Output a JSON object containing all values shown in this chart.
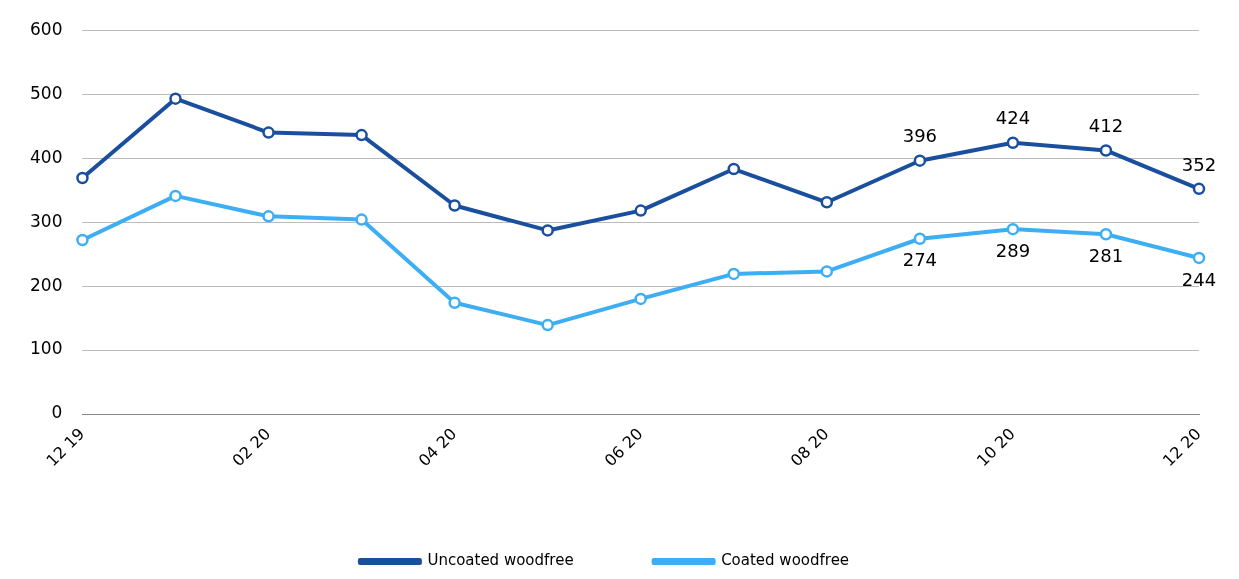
{
  "chart_data": {
    "type": "line",
    "categories": [
      "12 19",
      null,
      "02 20",
      null,
      "04 20",
      null,
      "06 20",
      null,
      "08 20",
      null,
      "10 20",
      null,
      "12 20"
    ],
    "series": [
      {
        "name": "Uncoated woodfree",
        "color": "#1a4f9e",
        "values": [
          369,
          493,
          440,
          436,
          326,
          287,
          318,
          383,
          331,
          396,
          424,
          412,
          352
        ],
        "value_labels": [
          null,
          null,
          null,
          null,
          null,
          null,
          null,
          null,
          null,
          "396",
          "424",
          "412",
          "352"
        ]
      },
      {
        "name": "Coated woodfree",
        "color": "#3eaef4",
        "values": [
          272,
          341,
          309,
          304,
          174,
          139,
          180,
          219,
          223,
          274,
          289,
          281,
          244
        ],
        "value_labels": [
          null,
          null,
          null,
          null,
          null,
          null,
          null,
          null,
          null,
          "274",
          "289",
          "281",
          "244"
        ]
      }
    ],
    "ylim": [
      0,
      600
    ],
    "yticks": [
      0,
      100,
      200,
      300,
      400,
      500,
      600
    ],
    "grid": "y",
    "legend": "bottom",
    "marker": "circle",
    "line_style": "solid"
  }
}
